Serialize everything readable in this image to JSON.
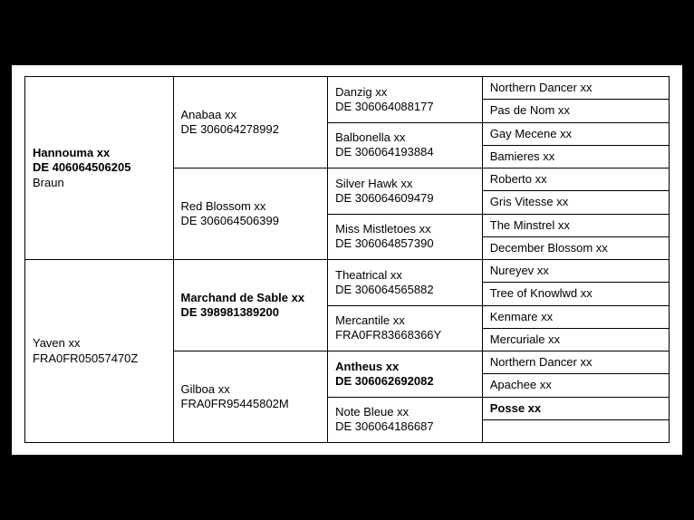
{
  "gen1": [
    {
      "name": "Hannouma xx",
      "id": "DE 406064506205",
      "extra": "Braun",
      "bold": true
    },
    {
      "name": "Yaven xx",
      "id": "FRA0FR05057470Z",
      "extra": "",
      "bold": false
    }
  ],
  "gen2": [
    {
      "name": "Anabaa xx",
      "id": "DE 306064278992",
      "bold": false
    },
    {
      "name": "Red Blossom xx",
      "id": "DE 306064506399",
      "bold": false
    },
    {
      "name": "Marchand de Sable xx",
      "id": "DE 398981389200",
      "bold": true
    },
    {
      "name": "Gilboa xx",
      "id": "FRA0FR95445802M",
      "bold": false
    }
  ],
  "gen3": [
    {
      "name": "Danzig xx",
      "id": "DE 306064088177",
      "bold": false
    },
    {
      "name": "Balbonella xx",
      "id": "DE 306064193884",
      "bold": false
    },
    {
      "name": "Silver Hawk xx",
      "id": "DE 306064609479",
      "bold": false
    },
    {
      "name": "Miss Mistletoes xx",
      "id": "DE 306064857390",
      "bold": false
    },
    {
      "name": "Theatrical xx",
      "id": "DE 306064565882",
      "bold": false
    },
    {
      "name": "Mercantile xx",
      "id": "FRA0FR83668366Y",
      "bold": false
    },
    {
      "name": "Antheus xx",
      "id": "DE 306062692082",
      "bold": true
    },
    {
      "name": "Note Bleue xx",
      "id": "DE 306064186687",
      "bold": false
    }
  ],
  "gen5": [
    {
      "name": "Northern Dancer xx",
      "bold": false
    },
    {
      "name": "Pas de Nom xx",
      "bold": false
    },
    {
      "name": "Gay Mecene xx",
      "bold": false
    },
    {
      "name": "Bamieres xx",
      "bold": false
    },
    {
      "name": "Roberto xx",
      "bold": false
    },
    {
      "name": "Gris Vitesse xx",
      "bold": false
    },
    {
      "name": "The Minstrel xx",
      "bold": false
    },
    {
      "name": "December Blossom xx",
      "bold": false
    },
    {
      "name": "Nureyev xx",
      "bold": false
    },
    {
      "name": "Tree of Knowlwd xx",
      "bold": false
    },
    {
      "name": "Kenmare xx",
      "bold": false
    },
    {
      "name": "Mercuriale xx",
      "bold": false
    },
    {
      "name": "Northern Dancer xx",
      "bold": false
    },
    {
      "name": "Apachee xx",
      "bold": false
    },
    {
      "name": "Posse xx",
      "bold": true
    },
    {
      "name": "",
      "bold": false
    }
  ]
}
